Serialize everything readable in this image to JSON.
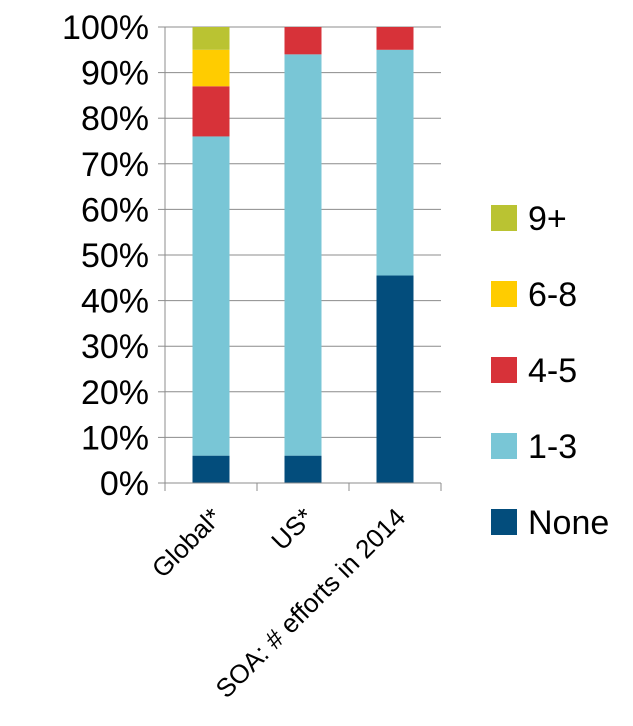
{
  "chart_data": {
    "type": "bar",
    "stacked": true,
    "normalized": true,
    "categories": [
      "Global*",
      "US*",
      "SOA: # efforts in 2014"
    ],
    "series": [
      {
        "name": "None",
        "color": "#034d7c",
        "values": [
          6,
          6,
          45.5
        ]
      },
      {
        "name": "1-3",
        "color": "#79c6d6",
        "values": [
          70,
          88,
          49.5
        ]
      },
      {
        "name": "4-5",
        "color": "#d73239",
        "values": [
          11,
          6,
          5
        ]
      },
      {
        "name": "6-8",
        "color": "#ffcc00",
        "values": [
          8,
          0,
          0
        ]
      },
      {
        "name": "9+",
        "color": "#bac332",
        "values": [
          5,
          0,
          0
        ]
      }
    ],
    "y_ticks": [
      "0%",
      "10%",
      "20%",
      "30%",
      "40%",
      "50%",
      "60%",
      "70%",
      "80%",
      "90%",
      "100%"
    ],
    "ylim": [
      0,
      100
    ],
    "grid": true,
    "grid_color": "#8c8c8c",
    "legend": [
      "9+",
      "6-8",
      "4-5",
      "1-3",
      "None"
    ],
    "legend_position": "right"
  }
}
